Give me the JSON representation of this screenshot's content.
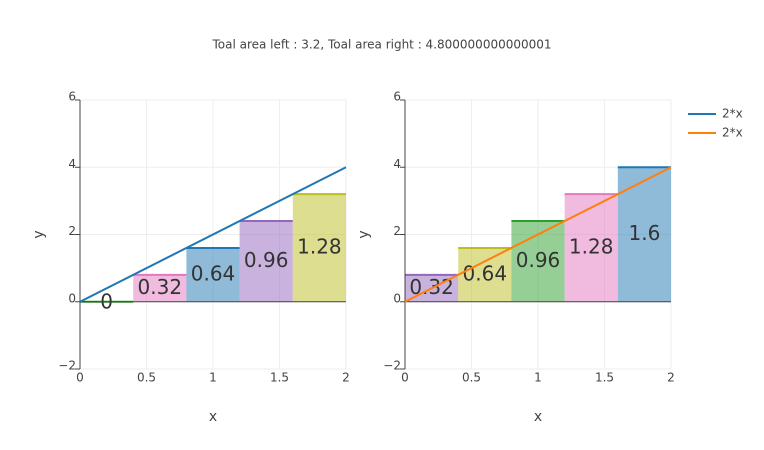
{
  "title": "Toal area left : 3.2, Toal area right : 4.800000000000001",
  "chart_data": [
    {
      "type": "bar",
      "xlabel": "x",
      "ylabel": "y",
      "xlim": [
        0,
        2
      ],
      "ylim": [
        -2,
        6
      ],
      "xticks": [
        0,
        0.5,
        1,
        1.5,
        2
      ],
      "yticks": [
        {
          "value": -2,
          "label": "−2"
        },
        0,
        2,
        4,
        6
      ],
      "grid": true,
      "bars": {
        "bins": [
          0,
          0.4,
          0.8,
          1.2,
          1.6,
          2
        ],
        "values": [
          0,
          0.8,
          1.6,
          2.4,
          3.2
        ],
        "areas": [
          0,
          0.32,
          0.64,
          0.96,
          1.28
        ],
        "colors": [
          "#2ca02c",
          "#e377c2",
          "#1f77b4",
          "#9467bd",
          "#bcbd22"
        ]
      },
      "series": [
        {
          "name": "2*x",
          "color": "#1f77b4",
          "x": [
            0,
            2
          ],
          "values": [
            0,
            4
          ]
        }
      ]
    },
    {
      "type": "bar",
      "xlabel": "x",
      "ylabel": "y",
      "xlim": [
        0,
        2
      ],
      "ylim": [
        -2,
        6
      ],
      "xticks": [
        0,
        0.5,
        1,
        1.5,
        2
      ],
      "yticks": [
        {
          "value": -2,
          "label": "−2"
        },
        0,
        2,
        4,
        6
      ],
      "grid": true,
      "bars": {
        "bins": [
          0,
          0.4,
          0.8,
          1.2,
          1.6,
          2
        ],
        "values": [
          0.8,
          1.6,
          2.4,
          3.2,
          4
        ],
        "areas": [
          0.32,
          0.64,
          0.96,
          1.28,
          1.6
        ],
        "colors": [
          "#9467bd",
          "#bcbd22",
          "#2ca02c",
          "#e377c2",
          "#1f77b4"
        ]
      },
      "series": [
        {
          "name": "2*x",
          "color": "#ff7f0e",
          "x": [
            0,
            2
          ],
          "values": [
            0,
            4
          ]
        }
      ]
    }
  ]
}
